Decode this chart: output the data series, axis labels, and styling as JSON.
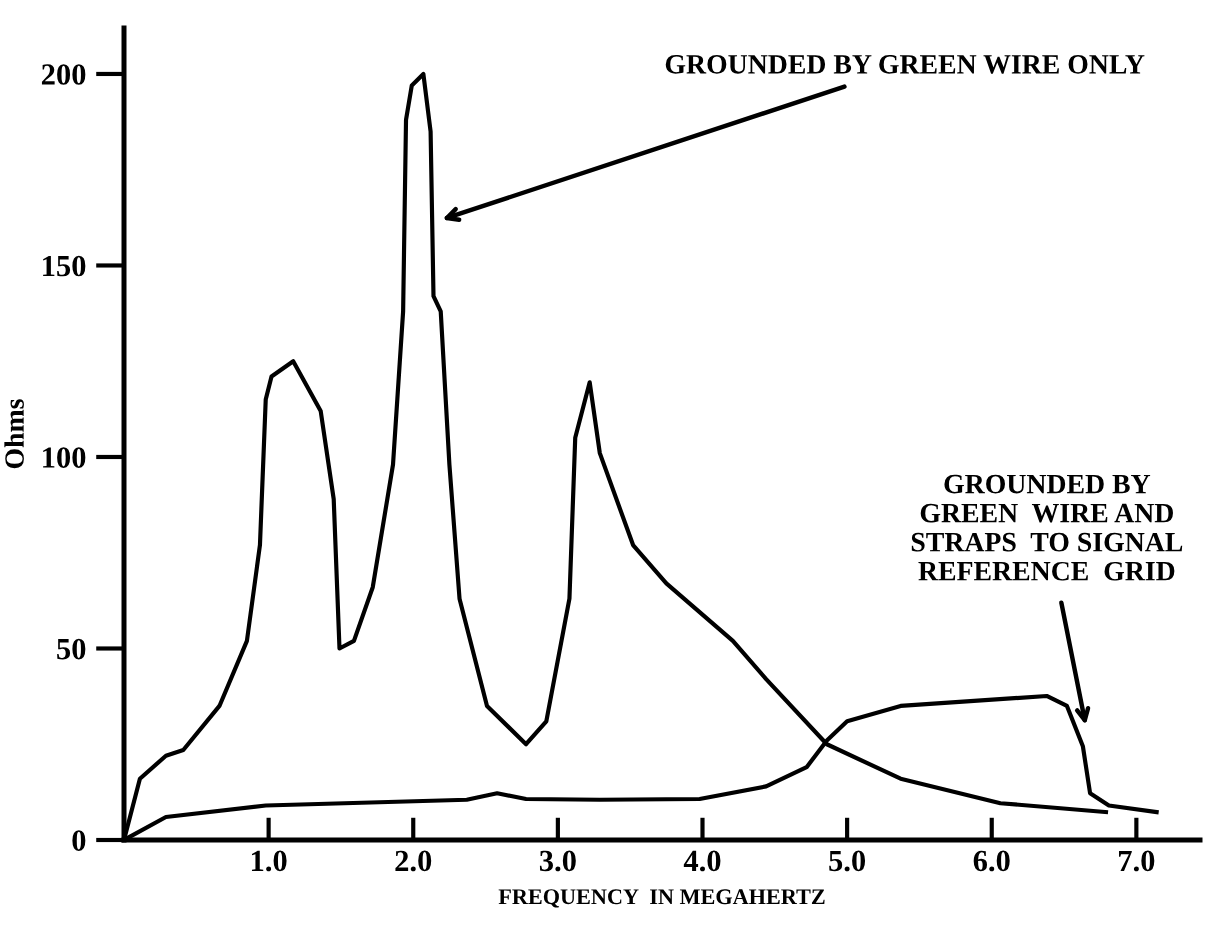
{
  "chart_data": {
    "type": "line",
    "xlabel": "FREQUENCY  IN MEGAHERTZ",
    "ylabel": "Ohms",
    "xlim": [
      0,
      7.44
    ],
    "ylim": [
      0,
      212
    ],
    "xticks": [
      {
        "value": 1,
        "label": "1.0"
      },
      {
        "value": 2,
        "label": "2.0"
      },
      {
        "value": 3,
        "label": "3.0"
      },
      {
        "value": 4,
        "label": "4.0"
      },
      {
        "value": 5,
        "label": "5.0"
      },
      {
        "value": 6,
        "label": "6.0"
      },
      {
        "value": 7,
        "label": "7.0"
      }
    ],
    "yticks": [
      0,
      50,
      100,
      150,
      200
    ],
    "grid": false,
    "legend": false,
    "marker": "none",
    "line_style": "solid",
    "series": [
      {
        "color": "#000000",
        "x": [
          0,
          0.11,
          0.29,
          0.41,
          0.66,
          0.85,
          0.94,
          0.98,
          1.02,
          1.17,
          1.36,
          1.45,
          1.49,
          1.59,
          1.72,
          1.86,
          1.93,
          1.95,
          1.99,
          2.07,
          2.12,
          2.14,
          2.19,
          2.25,
          2.32,
          2.51,
          2.78,
          2.92,
          3.08,
          3.12,
          3.22,
          3.29,
          3.52,
          3.75,
          4.21,
          4.44,
          4.86,
          5.37,
          6.06,
          6.79
        ],
        "values": [
          0,
          16,
          22,
          23.5,
          35,
          52,
          77,
          115,
          121,
          125,
          112,
          89,
          50,
          52,
          66,
          98,
          138,
          188,
          197,
          200,
          185,
          142,
          138,
          98,
          63,
          35,
          25,
          31,
          63,
          105,
          119.5,
          101,
          77,
          67,
          52,
          42,
          25,
          16,
          9.6,
          7.3
        ]
      },
      {
        "color": "#000000",
        "x": [
          0,
          0.29,
          0.98,
          2.37,
          2.58,
          2.78,
          3.29,
          3.98,
          4.44,
          4.72,
          4.86,
          5.0,
          5.37,
          6.38,
          6.52,
          6.63,
          6.68,
          6.81,
          7.14
        ],
        "values": [
          0,
          6,
          9,
          10.5,
          12.2,
          10.7,
          10.5,
          10.7,
          14,
          19,
          26,
          31,
          35,
          37.6,
          35,
          24.5,
          12.2,
          9,
          7.3
        ]
      }
    ],
    "annotations": [
      {
        "text": "GROUNDED BY GREEN WIRE ONLY",
        "x": 2.2,
        "y": 162
      },
      {
        "text": "GROUNDED BY\nGREEN  WIRE AND\nSTRAPS  TO SIGNAL\nREFERENCE  GRID",
        "x": 6.65,
        "y": 30
      }
    ]
  }
}
